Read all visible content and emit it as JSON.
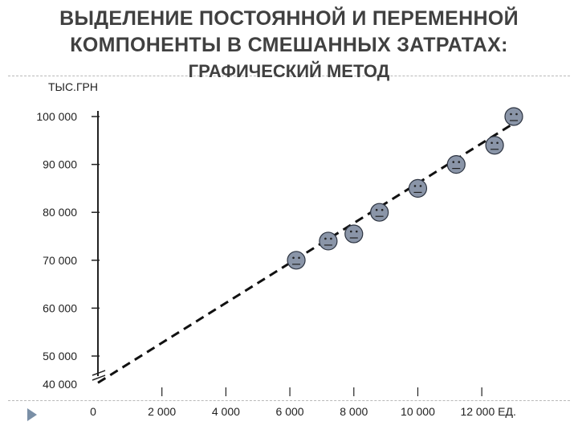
{
  "title_line1": "ВЫДЕЛЕНИЕ ПОСТОЯННОЙ И ПЕРЕМЕННОЙ",
  "title_line2": "КОМПОНЕНТЫ В СМЕШАННЫХ ЗАТРАТАХ:",
  "subtitle": "ГРАФИЧЕСКИЙ МЕТОД",
  "colors": {
    "text": "#404040",
    "axis": "#222222",
    "marker_fill": "#8a95a8",
    "line": "#111111",
    "bullet": "#7a8fa6"
  },
  "icons": [
    "slide-bullet-arrow-icon",
    "smiley-face-icon"
  ],
  "chart_data": {
    "type": "scatter",
    "title": "ВЫДЕЛЕНИЕ ПОСТОЯННОЙ И ПЕРЕМЕННОЙ КОМПОНЕНТЫ В СМЕШАННЫХ ЗАТРАТАХ: ГРАФИЧЕСКИЙ МЕТОД",
    "ylabel": "ТЫС.ГРН",
    "xunit_label": "ЕД.",
    "x_ticks": [
      0,
      2000,
      4000,
      6000,
      8000,
      10000,
      12000
    ],
    "x_tick_labels": [
      "0",
      "2 000",
      "4 000",
      "6 000",
      "8 000",
      "10 000",
      "12 000 ЕД."
    ],
    "y_ticks": [
      40000,
      50000,
      60000,
      70000,
      80000,
      90000,
      100000
    ],
    "y_tick_labels": [
      "40 000",
      "50 000",
      "60 000",
      "70 000",
      "80 000",
      "90 000",
      "100 000"
    ],
    "xlim": [
      0,
      13000
    ],
    "ylim": [
      40000,
      100000
    ],
    "axis_break": true,
    "marker": "smiley",
    "points": [
      {
        "x": 6200,
        "y": 70000
      },
      {
        "x": 7200,
        "y": 74000
      },
      {
        "x": 8000,
        "y": 75500
      },
      {
        "x": 8800,
        "y": 80000
      },
      {
        "x": 10000,
        "y": 85000
      },
      {
        "x": 11200,
        "y": 90000
      },
      {
        "x": 12400,
        "y": 94000
      },
      {
        "x": 13000,
        "y": 100000
      }
    ],
    "trend_line": {
      "style": "dashed",
      "x": [
        0,
        13100
      ],
      "y": [
        40500,
        99000
      ]
    },
    "grid": false
  }
}
